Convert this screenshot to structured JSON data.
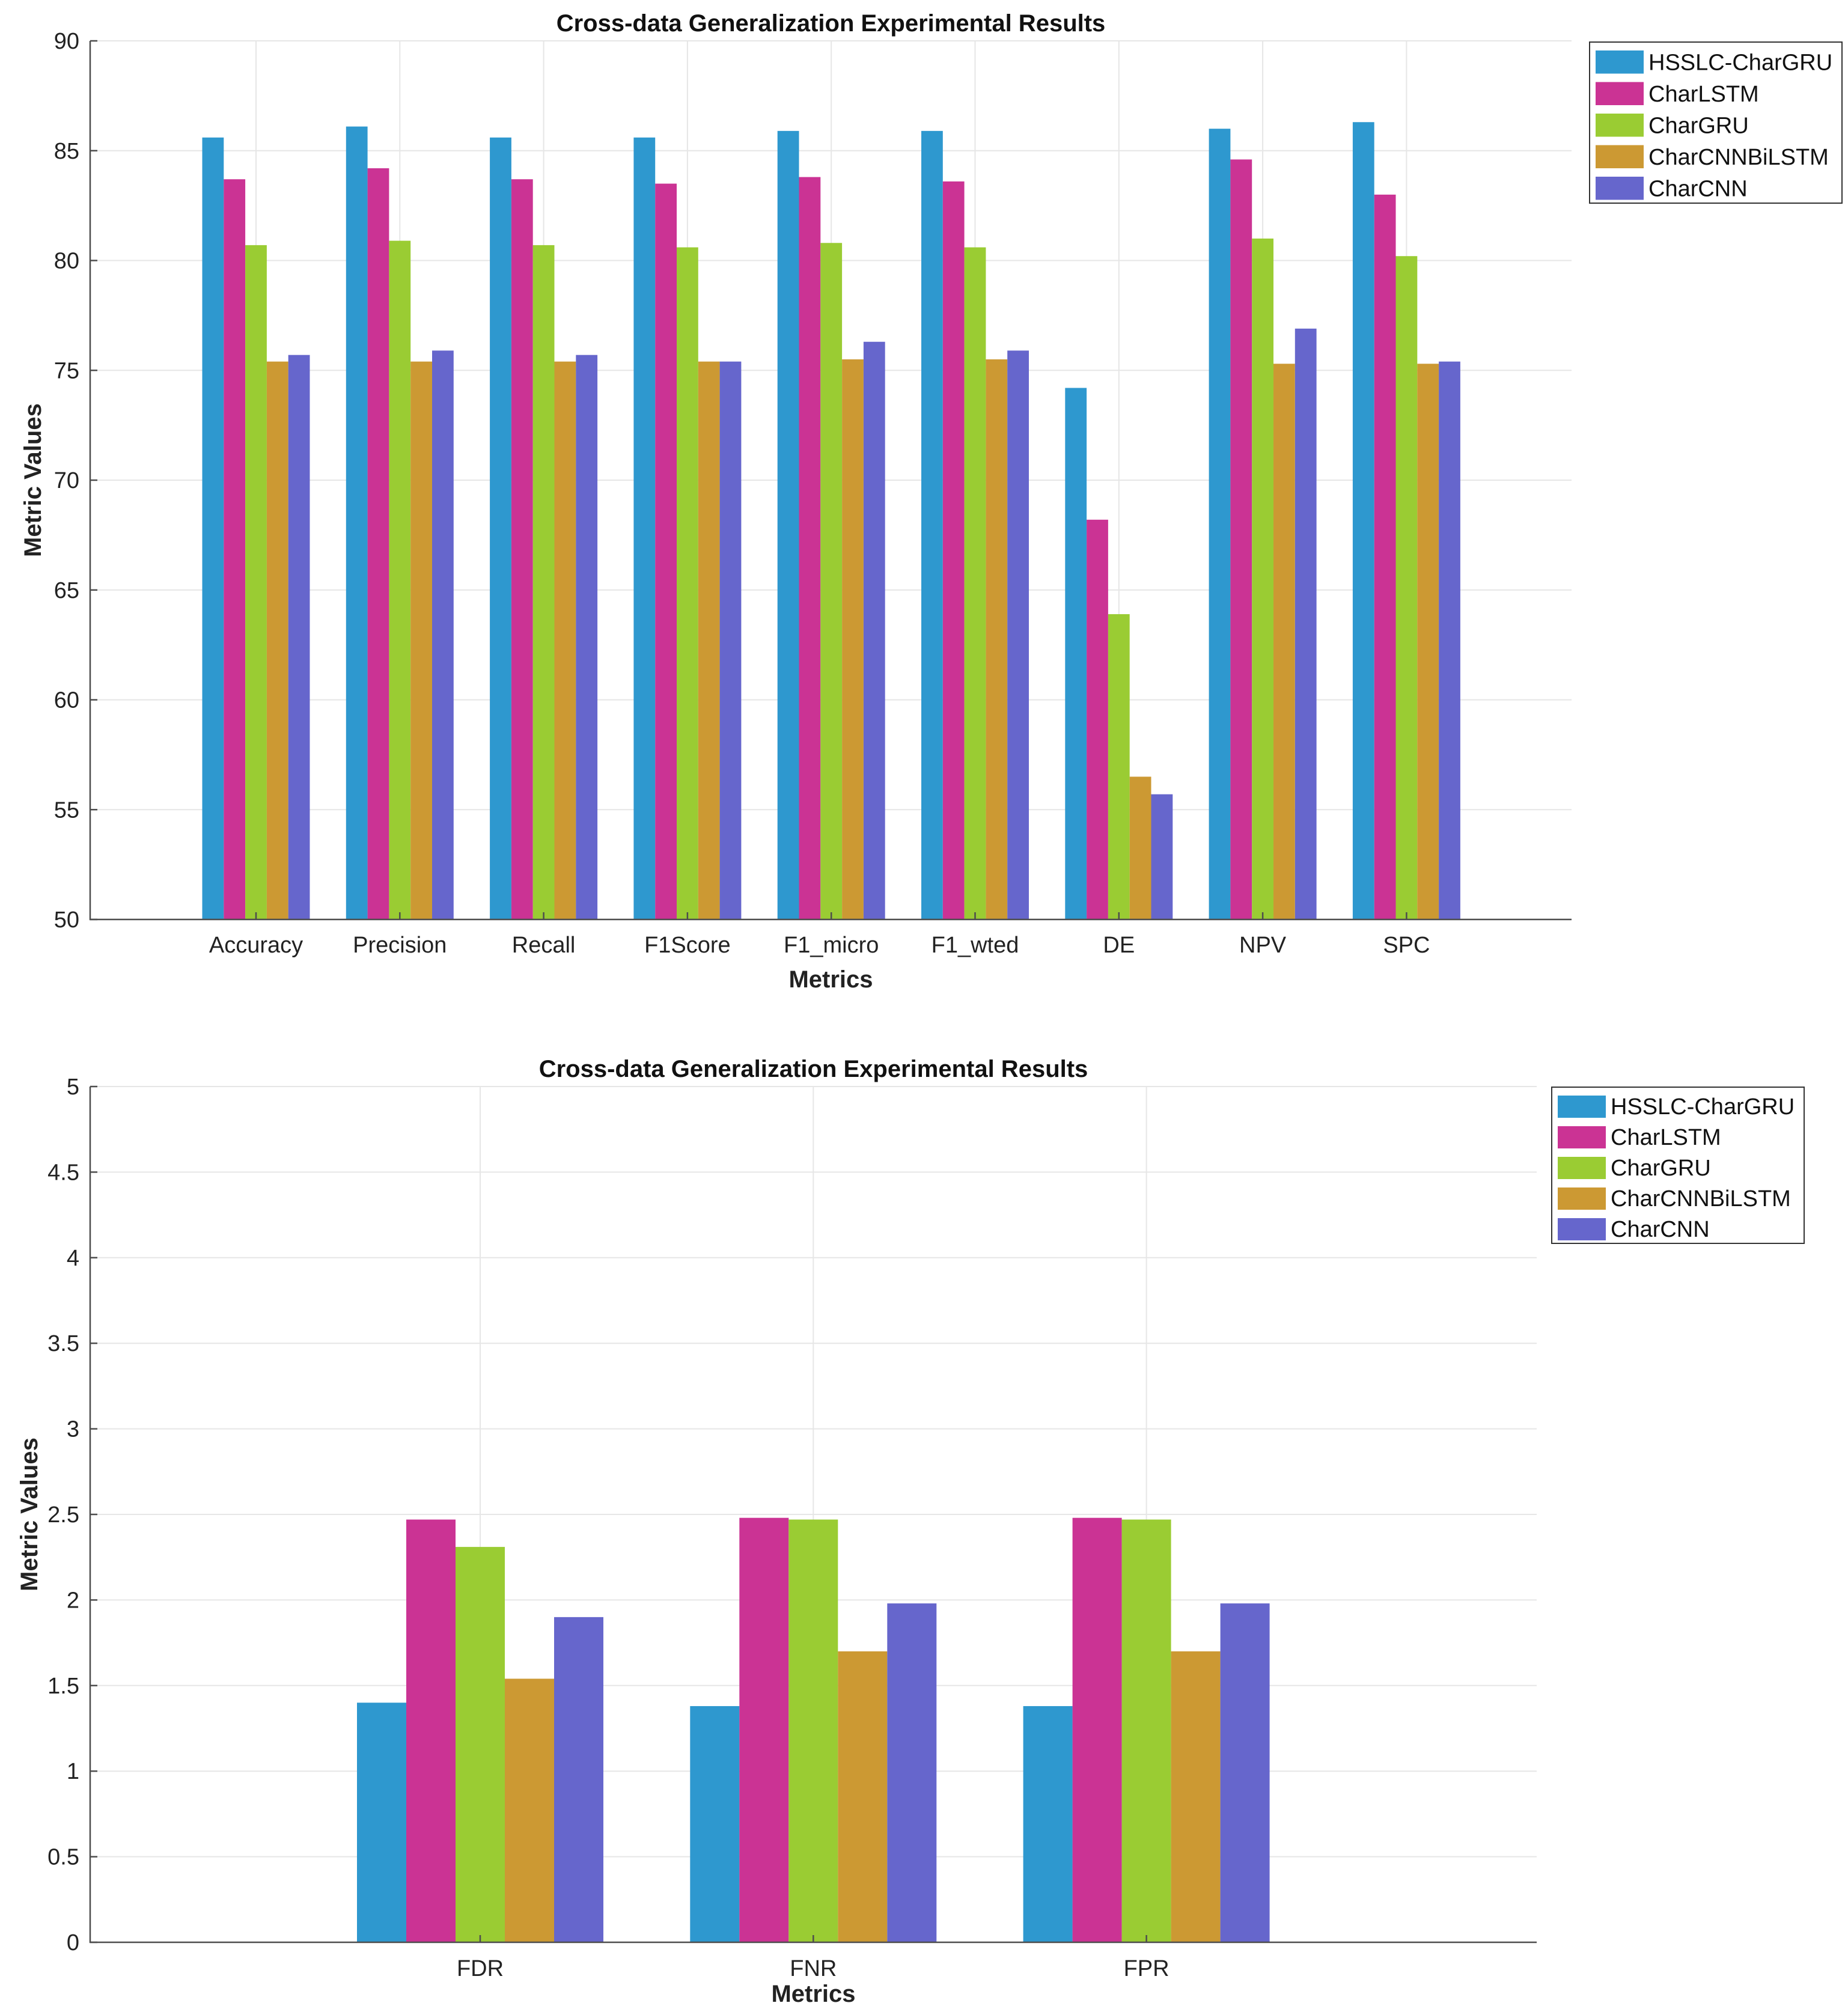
{
  "chart_data": [
    {
      "type": "bar",
      "title": "Cross-data Generalization Experimental Results",
      "xlabel": "Metrics",
      "ylabel": "Metric Values",
      "ylim": [
        50,
        90
      ],
      "yticks": [
        "50",
        "55",
        "60",
        "65",
        "70",
        "75",
        "80",
        "85",
        "90"
      ],
      "grid": true,
      "legend_position": "top-right",
      "categories": [
        "Accuracy",
        "Precision",
        "Recall",
        "F1Score",
        "F1_micro",
        "F1_wted",
        "DE",
        "NPV",
        "SPC"
      ],
      "series": [
        {
          "name": "HSSLC-CharGRU",
          "color": "#2E98CF",
          "values": [
            85.6,
            86.1,
            85.6,
            85.6,
            85.9,
            85.9,
            74.2,
            86.0,
            86.3
          ]
        },
        {
          "name": "CharLSTM",
          "color": "#CB3394",
          "values": [
            83.7,
            84.2,
            83.7,
            83.5,
            83.8,
            83.6,
            68.2,
            84.6,
            83.0
          ]
        },
        {
          "name": "CharGRU",
          "color": "#9ACC33",
          "values": [
            80.7,
            80.9,
            80.7,
            80.6,
            80.8,
            80.6,
            63.9,
            81.0,
            80.2
          ]
        },
        {
          "name": "CharCNNBiLSTM",
          "color": "#CC9933",
          "values": [
            75.4,
            75.4,
            75.4,
            75.4,
            75.5,
            75.5,
            56.5,
            75.3,
            75.3
          ]
        },
        {
          "name": "CharCNN",
          "color": "#6666CC",
          "values": [
            75.7,
            75.9,
            75.7,
            75.4,
            76.3,
            75.9,
            55.7,
            76.9,
            75.4
          ]
        }
      ]
    },
    {
      "type": "bar",
      "title": "Cross-data Generalization Experimental Results",
      "xlabel": "Metrics",
      "ylabel": "Metric Values",
      "ylim": [
        0,
        5
      ],
      "yticks": [
        "0",
        "0.5",
        "1",
        "1.5",
        "2",
        "2.5",
        "3",
        "3.5",
        "4",
        "4.5",
        "5"
      ],
      "grid": true,
      "legend_position": "top-right",
      "categories": [
        "FDR",
        "FNR",
        "FPR"
      ],
      "series": [
        {
          "name": "HSSLC-CharGRU",
          "color": "#2E98CF",
          "values": [
            1.4,
            1.38,
            1.38
          ]
        },
        {
          "name": "CharLSTM",
          "color": "#CB3394",
          "values": [
            2.47,
            2.48,
            2.48
          ]
        },
        {
          "name": "CharGRU",
          "color": "#9ACC33",
          "values": [
            2.31,
            2.47,
            2.47
          ]
        },
        {
          "name": "CharCNNBiLSTM",
          "color": "#CC9933",
          "values": [
            1.54,
            1.7,
            1.7
          ]
        },
        {
          "name": "CharCNN",
          "color": "#6666CC",
          "values": [
            1.9,
            1.98,
            1.98
          ]
        }
      ]
    }
  ]
}
